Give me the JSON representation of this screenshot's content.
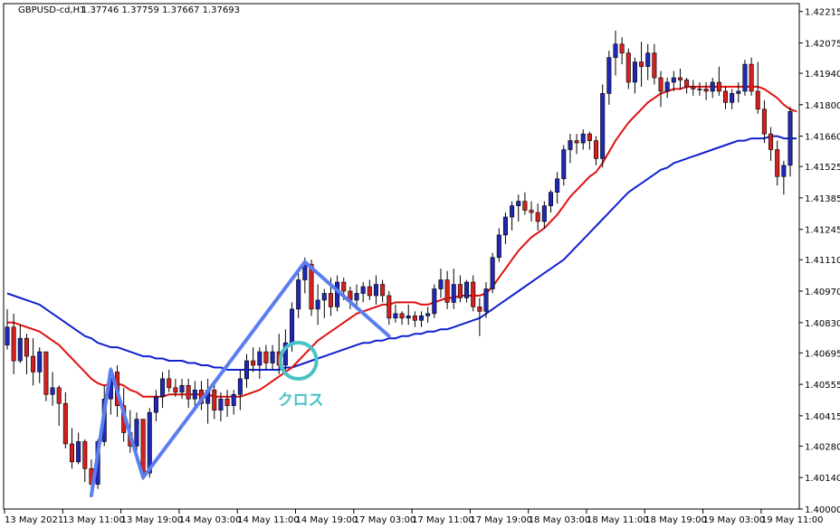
{
  "header": {
    "symbol": "GBPUSD-cd,H1",
    "ohlc": "1.37746 1.37759 1.37667 1.37693"
  },
  "annotation": {
    "label": "クロス",
    "color": "#49c2c6"
  },
  "chart_data": {
    "type": "candlestick",
    "timeframe": "H1",
    "ylim": [
      1.4,
      1.4225
    ],
    "y_ticks": [
      "1.42215",
      "1.42075",
      "1.41940",
      "1.41800",
      "1.41660",
      "1.41525",
      "1.41385",
      "1.41245",
      "1.41110",
      "1.40970",
      "1.40830",
      "1.40695",
      "1.40555",
      "1.40415",
      "1.40280",
      "1.40140",
      "1.40000"
    ],
    "x_ticks": [
      "13 May 2021",
      "13 May 11:00",
      "13 May 19:00",
      "14 May 03:00",
      "14 May 11:00",
      "14 May 19:00",
      "17 May 03:00",
      "17 May 11:00",
      "17 May 19:00",
      "18 May 03:00",
      "18 May 11:00",
      "18 May 19:00",
      "19 May 03:00",
      "19 May 11:00"
    ],
    "colors": {
      "bull": "#1f28b4",
      "bear": "#d42020",
      "ma_fast": "#e01010",
      "ma_slow": "#1020d0",
      "zigzag": "#5b7ef0",
      "grid_frame": "#000000"
    },
    "candles": [
      [
        1.4073,
        1.4089,
        1.4071,
        1.4081
      ],
      [
        1.4081,
        1.4087,
        1.406,
        1.4066
      ],
      [
        1.4066,
        1.4082,
        1.4065,
        1.4076
      ],
      [
        1.4076,
        1.4078,
        1.406,
        1.4068
      ],
      [
        1.4068,
        1.4076,
        1.4055,
        1.4061
      ],
      [
        1.4061,
        1.4072,
        1.4056,
        1.407
      ],
      [
        1.407,
        1.407,
        1.4048,
        1.4051
      ],
      [
        1.4051,
        1.4061,
        1.4046,
        1.4054
      ],
      [
        1.4054,
        1.4055,
        1.4037,
        1.4047
      ],
      [
        1.4047,
        1.4052,
        1.4027,
        1.4029
      ],
      [
        1.4029,
        1.4036,
        1.4018,
        1.4021
      ],
      [
        1.4021,
        1.4034,
        1.402,
        1.403
      ],
      [
        1.403,
        1.4031,
        1.4012,
        1.4018
      ],
      [
        1.4018,
        1.4022,
        1.4008,
        1.4011
      ],
      [
        1.4011,
        1.4031,
        1.4009,
        1.403
      ],
      [
        1.403,
        1.4055,
        1.4028,
        1.4049
      ],
      [
        1.4049,
        1.4063,
        1.4042,
        1.4061
      ],
      [
        1.4061,
        1.4064,
        1.4041,
        1.4046
      ],
      [
        1.4046,
        1.4054,
        1.403,
        1.4034
      ],
      [
        1.4034,
        1.4044,
        1.4025,
        1.4028
      ],
      [
        1.4028,
        1.4043,
        1.4021,
        1.404
      ],
      [
        1.404,
        1.404,
        1.4013,
        1.4016
      ],
      [
        1.4016,
        1.4045,
        1.4014,
        1.4043
      ],
      [
        1.4043,
        1.4053,
        1.4039,
        1.405
      ],
      [
        1.405,
        1.4061,
        1.4045,
        1.4058
      ],
      [
        1.4058,
        1.4062,
        1.4052,
        1.4054
      ],
      [
        1.4054,
        1.4058,
        1.405,
        1.4052
      ],
      [
        1.4052,
        1.4058,
        1.4049,
        1.4055
      ],
      [
        1.4055,
        1.4058,
        1.4045,
        1.4049
      ],
      [
        1.4049,
        1.4057,
        1.4046,
        1.4053
      ],
      [
        1.4053,
        1.4057,
        1.4044,
        1.4047
      ],
      [
        1.4047,
        1.4058,
        1.4038,
        1.4053
      ],
      [
        1.4053,
        1.4056,
        1.404,
        1.4044
      ],
      [
        1.4044,
        1.4052,
        1.4039,
        1.4049
      ],
      [
        1.4049,
        1.4053,
        1.4041,
        1.4046
      ],
      [
        1.4046,
        1.4053,
        1.4042,
        1.4051
      ],
      [
        1.4051,
        1.4062,
        1.4044,
        1.4058
      ],
      [
        1.4058,
        1.4069,
        1.4054,
        1.4066
      ],
      [
        1.4066,
        1.4072,
        1.4061,
        1.4064
      ],
      [
        1.4064,
        1.4072,
        1.4058,
        1.407
      ],
      [
        1.407,
        1.4073,
        1.4062,
        1.4065
      ],
      [
        1.4065,
        1.4073,
        1.4062,
        1.407
      ],
      [
        1.407,
        1.4078,
        1.406,
        1.4064
      ],
      [
        1.4064,
        1.408,
        1.406,
        1.4074
      ],
      [
        1.4074,
        1.4092,
        1.407,
        1.4089
      ],
      [
        1.4089,
        1.4105,
        1.4085,
        1.4102
      ],
      [
        1.4102,
        1.4112,
        1.4096,
        1.4109
      ],
      [
        1.4109,
        1.4111,
        1.4086,
        1.4089
      ],
      [
        1.4089,
        1.41,
        1.4082,
        1.4093
      ],
      [
        1.4093,
        1.4098,
        1.4085,
        1.4096
      ],
      [
        1.4096,
        1.4103,
        1.4086,
        1.409
      ],
      [
        1.409,
        1.4104,
        1.4088,
        1.4101
      ],
      [
        1.4101,
        1.4103,
        1.4093,
        1.4097
      ],
      [
        1.4097,
        1.4099,
        1.4089,
        1.4093
      ],
      [
        1.4093,
        1.41,
        1.409,
        1.4096
      ],
      [
        1.4096,
        1.4101,
        1.4092,
        1.4099
      ],
      [
        1.4099,
        1.4102,
        1.4093,
        1.4095
      ],
      [
        1.4095,
        1.4104,
        1.4091,
        1.41
      ],
      [
        1.41,
        1.4102,
        1.4092,
        1.4095
      ],
      [
        1.4095,
        1.4097,
        1.4082,
        1.4085
      ],
      [
        1.4085,
        1.4091,
        1.4083,
        1.4087
      ],
      [
        1.4087,
        1.4088,
        1.4082,
        1.4085
      ],
      [
        1.4085,
        1.4091,
        1.4082,
        1.4086
      ],
      [
        1.4086,
        1.4088,
        1.4081,
        1.4084
      ],
      [
        1.4084,
        1.4088,
        1.4081,
        1.4086
      ],
      [
        1.4086,
        1.409,
        1.4083,
        1.4087
      ],
      [
        1.4087,
        1.41,
        1.4085,
        1.4098
      ],
      [
        1.4098,
        1.4107,
        1.4094,
        1.4102
      ],
      [
        1.4102,
        1.4106,
        1.4089,
        1.4092
      ],
      [
        1.4092,
        1.4107,
        1.4089,
        1.41
      ],
      [
        1.41,
        1.4104,
        1.4092,
        1.4094
      ],
      [
        1.4094,
        1.4102,
        1.4092,
        1.4101
      ],
      [
        1.4101,
        1.4104,
        1.4088,
        1.409
      ],
      [
        1.409,
        1.4094,
        1.4077,
        1.4088
      ],
      [
        1.4088,
        1.4101,
        1.4085,
        1.4098
      ],
      [
        1.4098,
        1.4114,
        1.4096,
        1.4112
      ],
      [
        1.4112,
        1.4125,
        1.411,
        1.4122
      ],
      [
        1.4122,
        1.4132,
        1.4118,
        1.413
      ],
      [
        1.413,
        1.4137,
        1.4124,
        1.4135
      ],
      [
        1.4135,
        1.414,
        1.4128,
        1.4137
      ],
      [
        1.4137,
        1.4141,
        1.4131,
        1.4133
      ],
      [
        1.4133,
        1.4137,
        1.4128,
        1.4132
      ],
      [
        1.4132,
        1.4136,
        1.4124,
        1.4128
      ],
      [
        1.4128,
        1.4137,
        1.4125,
        1.4135
      ],
      [
        1.4135,
        1.4142,
        1.4132,
        1.4141
      ],
      [
        1.4141,
        1.415,
        1.4136,
        1.4147
      ],
      [
        1.4147,
        1.4162,
        1.4144,
        1.416
      ],
      [
        1.416,
        1.4167,
        1.4154,
        1.4164
      ],
      [
        1.4164,
        1.4167,
        1.4158,
        1.4163
      ],
      [
        1.4163,
        1.4169,
        1.416,
        1.4167
      ],
      [
        1.4167,
        1.4168,
        1.416,
        1.4164
      ],
      [
        1.4164,
        1.4166,
        1.4153,
        1.4156
      ],
      [
        1.4156,
        1.4189,
        1.4152,
        1.4185
      ],
      [
        1.4185,
        1.4204,
        1.418,
        1.4201
      ],
      [
        1.4201,
        1.4213,
        1.4193,
        1.4207
      ],
      [
        1.4207,
        1.421,
        1.4198,
        1.4203
      ],
      [
        1.4203,
        1.4205,
        1.4187,
        1.419
      ],
      [
        1.419,
        1.4201,
        1.4185,
        1.4199
      ],
      [
        1.4199,
        1.4208,
        1.4188,
        1.4197
      ],
      [
        1.4197,
        1.4207,
        1.4191,
        1.4203
      ],
      [
        1.4203,
        1.4207,
        1.4189,
        1.4192
      ],
      [
        1.4192,
        1.4195,
        1.4179,
        1.4186
      ],
      [
        1.4186,
        1.4192,
        1.4183,
        1.419
      ],
      [
        1.419,
        1.4195,
        1.4186,
        1.4192
      ],
      [
        1.4192,
        1.4196,
        1.4187,
        1.4191
      ],
      [
        1.4191,
        1.4192,
        1.4185,
        1.4188
      ],
      [
        1.4188,
        1.4191,
        1.4184,
        1.4187
      ],
      [
        1.4187,
        1.419,
        1.4184,
        1.4187
      ],
      [
        1.4187,
        1.419,
        1.4182,
        1.4186
      ],
      [
        1.4186,
        1.4192,
        1.4183,
        1.419
      ],
      [
        1.419,
        1.4197,
        1.4184,
        1.4186
      ],
      [
        1.4186,
        1.4188,
        1.4178,
        1.4181
      ],
      [
        1.4181,
        1.4187,
        1.4178,
        1.4185
      ],
      [
        1.4185,
        1.419,
        1.4181,
        1.4186
      ],
      [
        1.4186,
        1.42,
        1.4184,
        1.4198
      ],
      [
        1.4198,
        1.4201,
        1.4184,
        1.4186
      ],
      [
        1.4186,
        1.4199,
        1.4176,
        1.4178
      ],
      [
        1.4178,
        1.4182,
        1.4163,
        1.4167
      ],
      [
        1.4167,
        1.417,
        1.4155,
        1.416
      ],
      [
        1.416,
        1.4164,
        1.4144,
        1.4148
      ],
      [
        1.4148,
        1.4155,
        1.414,
        1.4153
      ],
      [
        1.4153,
        1.4179,
        1.4148,
        1.4177
      ]
    ],
    "ma_fast": [
      1.4083,
      1.4083,
      1.4082,
      1.4081,
      1.408,
      1.4079,
      1.4077,
      1.4075,
      1.4073,
      1.407,
      1.4067,
      1.4064,
      1.4061,
      1.4058,
      1.4056,
      1.4055,
      1.4056,
      1.4056,
      1.4055,
      1.4053,
      1.4052,
      1.405,
      1.405,
      1.405,
      1.405,
      1.4051,
      1.4051,
      1.4051,
      1.4051,
      1.4051,
      1.4051,
      1.4051,
      1.405,
      1.405,
      1.405,
      1.405,
      1.405,
      1.4051,
      1.4052,
      1.4053,
      1.4055,
      1.4057,
      1.4059,
      1.4061,
      1.4063,
      1.4066,
      1.4069,
      1.4072,
      1.4075,
      1.4077,
      1.4079,
      1.4081,
      1.4083,
      1.4085,
      1.4087,
      1.4088,
      1.4089,
      1.409,
      1.4091,
      1.4091,
      1.4092,
      1.4092,
      1.4092,
      1.4092,
      1.4091,
      1.4091,
      1.4092,
      1.4093,
      1.4094,
      1.4094,
      1.4095,
      1.4095,
      1.4095,
      1.4095,
      1.4096,
      1.4099,
      1.4103,
      1.4107,
      1.4111,
      1.4115,
      1.4118,
      1.4121,
      1.4123,
      1.4125,
      1.4128,
      1.4131,
      1.4135,
      1.4139,
      1.4142,
      1.4145,
      1.4148,
      1.415,
      1.4154,
      1.4159,
      1.4164,
      1.4168,
      1.4172,
      1.4175,
      1.4178,
      1.4181,
      1.4183,
      1.4185,
      1.4186,
      1.4187,
      1.4187,
      1.4188,
      1.4188,
      1.4188,
      1.4188,
      1.4188,
      1.4188,
      1.4188,
      1.4188,
      1.4188,
      1.4188,
      1.4188,
      1.4188,
      1.4187,
      1.4185,
      1.4183,
      1.418,
      1.4178,
      1.4177
    ],
    "ma_slow": [
      1.4096,
      1.4095,
      1.4094,
      1.4093,
      1.4092,
      1.4091,
      1.4089,
      1.4087,
      1.4085,
      1.4083,
      1.4081,
      1.4079,
      1.4077,
      1.4076,
      1.4074,
      1.4073,
      1.4072,
      1.4072,
      1.4071,
      1.407,
      1.4069,
      1.4068,
      1.4068,
      1.4067,
      1.4067,
      1.4066,
      1.4066,
      1.4066,
      1.4065,
      1.4065,
      1.4064,
      1.4064,
      1.4063,
      1.4063,
      1.4062,
      1.4062,
      1.4062,
      1.4062,
      1.4062,
      1.4062,
      1.4062,
      1.4062,
      1.4062,
      1.4063,
      1.4063,
      1.4064,
      1.4065,
      1.4066,
      1.4067,
      1.4068,
      1.4069,
      1.407,
      1.4071,
      1.4072,
      1.4073,
      1.4074,
      1.4074,
      1.4075,
      1.4075,
      1.4076,
      1.4076,
      1.4077,
      1.4077,
      1.4078,
      1.4078,
      1.4079,
      1.4079,
      1.408,
      1.408,
      1.4081,
      1.4082,
      1.4083,
      1.4084,
      1.4085,
      1.4087,
      1.4089,
      1.4091,
      1.4093,
      1.4095,
      1.4097,
      1.4099,
      1.4101,
      1.4103,
      1.4105,
      1.4107,
      1.4109,
      1.4111,
      1.4114,
      1.4117,
      1.412,
      1.4123,
      1.4126,
      1.4129,
      1.4132,
      1.4135,
      1.4138,
      1.4141,
      1.4143,
      1.4145,
      1.4147,
      1.4149,
      1.4151,
      1.4152,
      1.4154,
      1.4155,
      1.4156,
      1.4157,
      1.4158,
      1.4159,
      1.416,
      1.4161,
      1.4162,
      1.4163,
      1.4164,
      1.4164,
      1.4165,
      1.4165,
      1.4165,
      1.4166,
      1.4166,
      1.4165,
      1.4165,
      1.4165
    ],
    "zigzag": [
      [
        13,
        1.4006
      ],
      [
        16,
        1.4062
      ],
      [
        21,
        1.4014
      ],
      [
        46,
        1.411
      ],
      [
        59,
        1.4077
      ]
    ],
    "cross_point": [
      45,
      1.4066
    ]
  }
}
